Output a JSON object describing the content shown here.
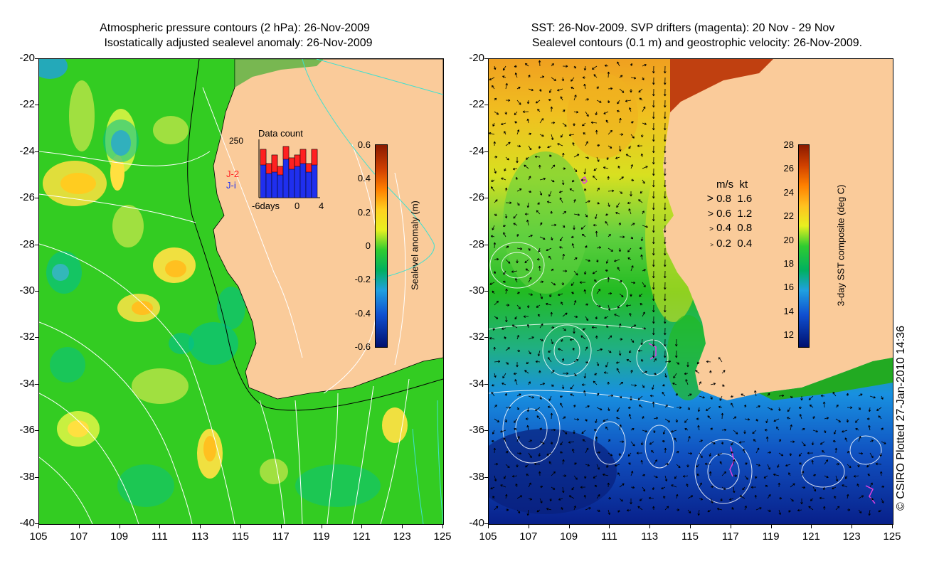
{
  "titles": {
    "left_line1": "Atmospheric pressure contours (2 hPa): 26-Nov-2009",
    "left_line2": "Isostatically adjusted sealevel anomaly: 26-Nov-2009",
    "right_line1": "SST: 26-Nov-2009. SVP drifters (magenta): 20 Nov - 29 Nov",
    "right_line2": "Sealevel contours (0.1 m) and geostrophic velocity: 26-Nov-2009."
  },
  "credit": "© CSIRO Plotted 27-Jan-2010 14:36",
  "colors": {
    "land": "#FACB9A",
    "ocean_green": "#33CC22",
    "contour_white": "#FFFFFF",
    "contour_cyan": "#40E0D0",
    "drifter_magenta": "#E040E0",
    "bar_red": "#FF2020",
    "bar_blue": "#1F2FEE"
  },
  "chart_data": [
    {
      "type": "heatmap",
      "name": "",
      "xlim": [
        105,
        125
      ],
      "ylim": [
        -40,
        -20
      ],
      "x_ticks": [
        "105",
        "107",
        "109",
        "111",
        "113",
        "115",
        "117",
        "119",
        "121",
        "123",
        "125"
      ],
      "y_ticks": [
        "-20",
        "-22",
        "-24",
        "-26",
        "-28",
        "-30",
        "-32",
        "-34",
        "-36",
        "-38",
        "-40"
      ],
      "colorbar": {
        "label": "Sealevel anomaly (m)",
        "ticks": [
          "0.6",
          "0.4",
          "0.2",
          "0",
          "-0.2",
          "-0.4",
          "-0.6"
        ],
        "range": [
          -0.6,
          0.6
        ]
      },
      "inset": {
        "title": "Data count",
        "y_tick": "250",
        "x_ticks": [
          "-6days",
          "0",
          "4"
        ],
        "legend": [
          {
            "name": "J-2",
            "color": "#FF2020"
          },
          {
            "name": "J-i",
            "color": "#1F2FEE"
          }
        ],
        "bars_red_top": [
          0.55,
          0.35,
          0.6,
          0.3,
          0.45,
          0.4,
          0.4,
          0.5,
          0.3,
          0.55
        ],
        "bars_blue_top": [
          0.85,
          0.6,
          0.75,
          0.55,
          0.9,
          0.7,
          0.75,
          0.85,
          0.6,
          0.85
        ]
      }
    },
    {
      "type": "heatmap",
      "name": "",
      "xlim": [
        105,
        125
      ],
      "ylim": [
        -40,
        -20
      ],
      "x_ticks": [
        "105",
        "107",
        "109",
        "111",
        "113",
        "115",
        "117",
        "119",
        "121",
        "123",
        "125"
      ],
      "y_ticks": [
        "-20",
        "-22",
        "-24",
        "-26",
        "-28",
        "-30",
        "-32",
        "-34",
        "-36",
        "-38",
        "-40"
      ],
      "colorbar": {
        "label": "3-day SST composite (deg C)",
        "ticks": [
          "28",
          "26",
          "24",
          "22",
          "20",
          "18",
          "16",
          "14",
          "12"
        ],
        "range": [
          11,
          28
        ]
      },
      "velocity_legend": {
        "headers": [
          "m/s",
          "kt"
        ],
        "rows": [
          [
            "0.8",
            "1.6"
          ],
          [
            "0.6",
            "1.2"
          ],
          [
            "0.4",
            "0.8"
          ],
          [
            "0.2",
            "0.4"
          ]
        ]
      }
    }
  ]
}
